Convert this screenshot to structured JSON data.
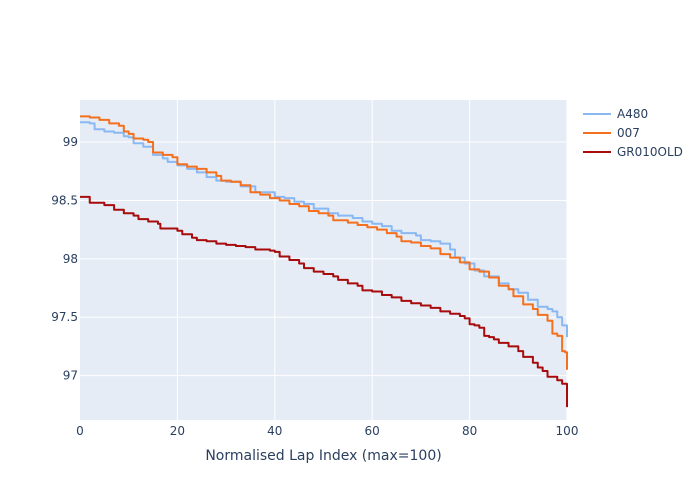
{
  "chart_data": {
    "type": "line",
    "title": "",
    "xlabel": "Normalised Lap Index (max=100)",
    "ylabel": "",
    "xlim": [
      0,
      100
    ],
    "ylim": [
      96.62,
      99.36
    ],
    "x_ticks": [
      0,
      20,
      40,
      60,
      80,
      100
    ],
    "y_ticks": [
      97,
      97.5,
      98,
      98.5,
      99
    ],
    "grid": true,
    "legend_position": "top-right",
    "background": "#e5ecf6",
    "series": [
      {
        "name": "A480",
        "color": "#8ab8f2",
        "points": [
          [
            0,
            99.17
          ],
          [
            2,
            99.16
          ],
          [
            3,
            99.11
          ],
          [
            5,
            99.09
          ],
          [
            7,
            99.08
          ],
          [
            9,
            99.05
          ],
          [
            10,
            99.04
          ],
          [
            11,
            98.99
          ],
          [
            13,
            98.96
          ],
          [
            15,
            98.89
          ],
          [
            17,
            98.86
          ],
          [
            18,
            98.83
          ],
          [
            20,
            98.8
          ],
          [
            22,
            98.77
          ],
          [
            24,
            98.74
          ],
          [
            26,
            98.7
          ],
          [
            28,
            98.67
          ],
          [
            30,
            98.66
          ],
          [
            33,
            98.62
          ],
          [
            36,
            98.57
          ],
          [
            40,
            98.53
          ],
          [
            42,
            98.52
          ],
          [
            44,
            98.49
          ],
          [
            46,
            98.47
          ],
          [
            48,
            98.43
          ],
          [
            51,
            98.39
          ],
          [
            53,
            98.37
          ],
          [
            56,
            98.35
          ],
          [
            58,
            98.32
          ],
          [
            60,
            98.3
          ],
          [
            62,
            98.28
          ],
          [
            64,
            98.24
          ],
          [
            66,
            98.22
          ],
          [
            69,
            98.2
          ],
          [
            70,
            98.16
          ],
          [
            72,
            98.15
          ],
          [
            74,
            98.13
          ],
          [
            76,
            98.08
          ],
          [
            77,
            98.01
          ],
          [
            79,
            97.96
          ],
          [
            81,
            97.9
          ],
          [
            83,
            97.85
          ],
          [
            86,
            97.79
          ],
          [
            88,
            97.74
          ],
          [
            90,
            97.71
          ],
          [
            92,
            97.65
          ],
          [
            94,
            97.59
          ],
          [
            96,
            97.57
          ],
          [
            97,
            97.55
          ],
          [
            98,
            97.5
          ],
          [
            99,
            97.43
          ],
          [
            100,
            97.33
          ]
        ]
      },
      {
        "name": "007",
        "color": "#f5701e",
        "points": [
          [
            0,
            99.22
          ],
          [
            2,
            99.21
          ],
          [
            4,
            99.19
          ],
          [
            6,
            99.16
          ],
          [
            8,
            99.14
          ],
          [
            9,
            99.09
          ],
          [
            10,
            99.07
          ],
          [
            11,
            99.03
          ],
          [
            13,
            99.02
          ],
          [
            14,
            99.0
          ],
          [
            15,
            98.91
          ],
          [
            17,
            98.89
          ],
          [
            19,
            98.87
          ],
          [
            20,
            98.81
          ],
          [
            22,
            98.79
          ],
          [
            24,
            98.77
          ],
          [
            26,
            98.74
          ],
          [
            28,
            98.71
          ],
          [
            29,
            98.67
          ],
          [
            31,
            98.66
          ],
          [
            33,
            98.63
          ],
          [
            35,
            98.57
          ],
          [
            37,
            98.55
          ],
          [
            39,
            98.52
          ],
          [
            41,
            98.5
          ],
          [
            43,
            98.47
          ],
          [
            45,
            98.45
          ],
          [
            47,
            98.41
          ],
          [
            49,
            98.39
          ],
          [
            51,
            98.37
          ],
          [
            52,
            98.33
          ],
          [
            55,
            98.31
          ],
          [
            57,
            98.29
          ],
          [
            59,
            98.27
          ],
          [
            61,
            98.25
          ],
          [
            63,
            98.22
          ],
          [
            65,
            98.19
          ],
          [
            66,
            98.15
          ],
          [
            68,
            98.14
          ],
          [
            70,
            98.11
          ],
          [
            72,
            98.09
          ],
          [
            74,
            98.04
          ],
          [
            76,
            98.01
          ],
          [
            78,
            97.97
          ],
          [
            80,
            97.91
          ],
          [
            82,
            97.89
          ],
          [
            84,
            97.84
          ],
          [
            86,
            97.77
          ],
          [
            88,
            97.74
          ],
          [
            89,
            97.68
          ],
          [
            91,
            97.61
          ],
          [
            93,
            97.57
          ],
          [
            94,
            97.52
          ],
          [
            96,
            97.47
          ],
          [
            97,
            97.36
          ],
          [
            98,
            97.34
          ],
          [
            99,
            97.21
          ],
          [
            99.6,
            97.2
          ],
          [
            100,
            97.05
          ]
        ]
      },
      {
        "name": "GR010OLD",
        "color": "#a80b0b",
        "points": [
          [
            0,
            98.53
          ],
          [
            2,
            98.48
          ],
          [
            5,
            98.46
          ],
          [
            7,
            98.42
          ],
          [
            9,
            98.39
          ],
          [
            11,
            98.37
          ],
          [
            12,
            98.34
          ],
          [
            14,
            98.32
          ],
          [
            16,
            98.3
          ],
          [
            16.5,
            98.26
          ],
          [
            18,
            98.26
          ],
          [
            20,
            98.24
          ],
          [
            21,
            98.21
          ],
          [
            23,
            98.18
          ],
          [
            24,
            98.16
          ],
          [
            26,
            98.15
          ],
          [
            28,
            98.13
          ],
          [
            30,
            98.12
          ],
          [
            32,
            98.11
          ],
          [
            34,
            98.1
          ],
          [
            36,
            98.08
          ],
          [
            39,
            98.07
          ],
          [
            40,
            98.06
          ],
          [
            41,
            98.02
          ],
          [
            42,
            98.02
          ],
          [
            43,
            97.99
          ],
          [
            45,
            97.96
          ],
          [
            46,
            97.92
          ],
          [
            48,
            97.89
          ],
          [
            50,
            97.87
          ],
          [
            52,
            97.85
          ],
          [
            53,
            97.82
          ],
          [
            55,
            97.79
          ],
          [
            57,
            97.77
          ],
          [
            58,
            97.73
          ],
          [
            60,
            97.72
          ],
          [
            62,
            97.69
          ],
          [
            64,
            97.67
          ],
          [
            66,
            97.64
          ],
          [
            68,
            97.62
          ],
          [
            70,
            97.6
          ],
          [
            72,
            97.58
          ],
          [
            74,
            97.55
          ],
          [
            76,
            97.53
          ],
          [
            78,
            97.51
          ],
          [
            79,
            97.49
          ],
          [
            80,
            97.44
          ],
          [
            81,
            97.43
          ],
          [
            82,
            97.41
          ],
          [
            83,
            97.34
          ],
          [
            84,
            97.33
          ],
          [
            85,
            97.31
          ],
          [
            86,
            97.28
          ],
          [
            88,
            97.25
          ],
          [
            90,
            97.21
          ],
          [
            91,
            97.16
          ],
          [
            93,
            97.11
          ],
          [
            94,
            97.07
          ],
          [
            95,
            97.04
          ],
          [
            96,
            96.99
          ],
          [
            98,
            96.96
          ],
          [
            99,
            96.93
          ],
          [
            99.5,
            96.93
          ],
          [
            100,
            96.73
          ]
        ]
      }
    ]
  }
}
